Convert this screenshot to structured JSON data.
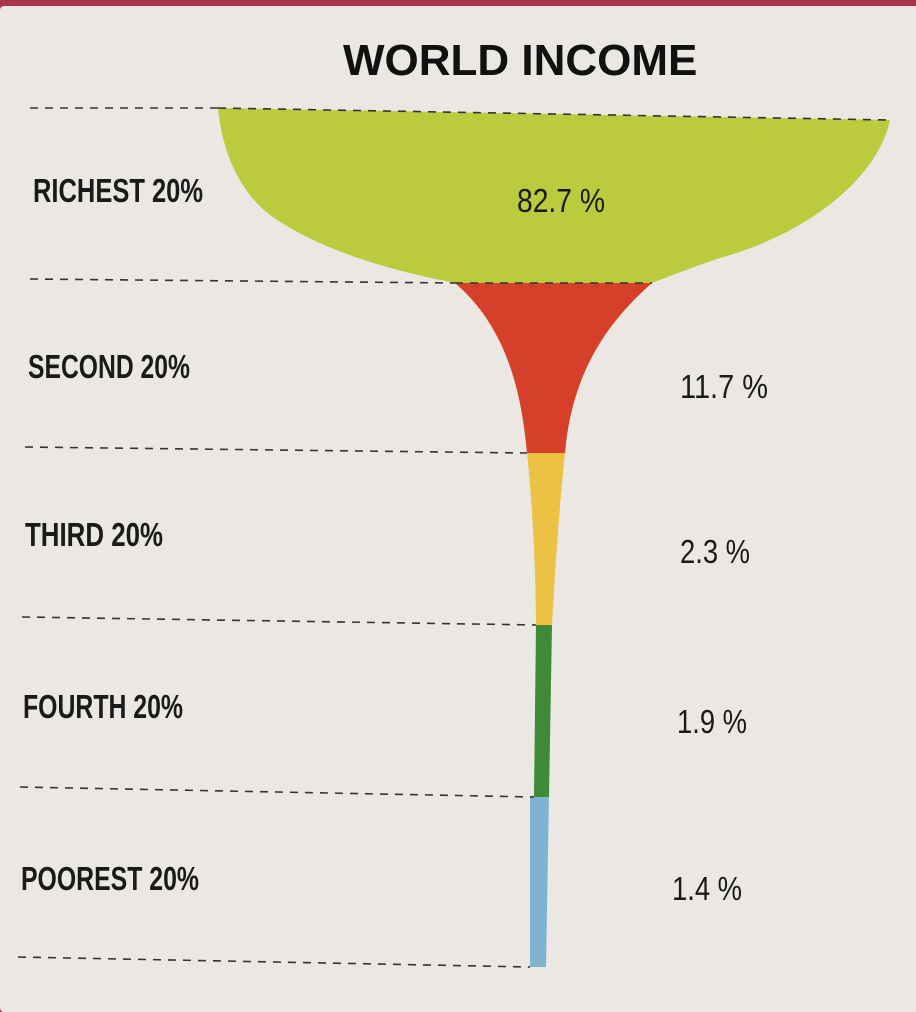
{
  "chart_data": {
    "type": "funnel",
    "title": "WORLD INCOME",
    "categories": [
      "RICHEST 20%",
      "SECOND 20%",
      "THIRD 20%",
      "FOURTH 20%",
      "POOREST 20%"
    ],
    "values": [
      82.7,
      11.7,
      2.3,
      1.9,
      1.4
    ],
    "value_labels": [
      "82.7 %",
      "11.7 %",
      "2.3 %",
      "1.9 %",
      "1.4 %"
    ],
    "colors": [
      "#bcca3d",
      "#d6402a",
      "#ecc244",
      "#3f8a36",
      "#7fb3d0"
    ]
  }
}
